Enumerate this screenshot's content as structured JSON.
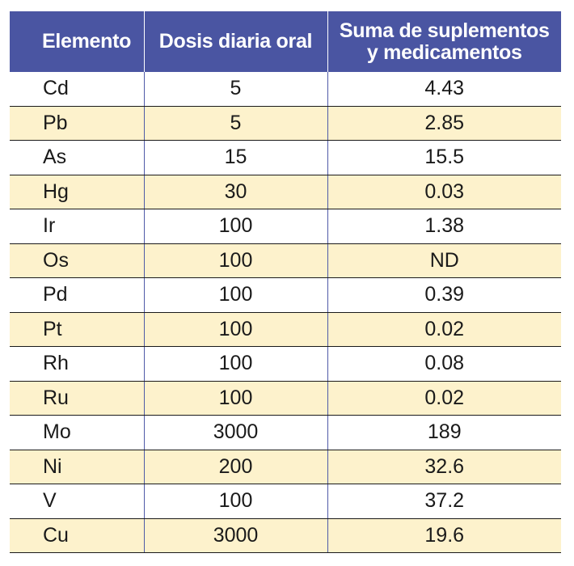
{
  "table": {
    "headers": {
      "element": "Elemento",
      "oral_dose": "Dosis diaria oral",
      "sum_line1": "Suma de suplementos",
      "sum_line2": "y medicamentos"
    },
    "rows": [
      {
        "element": "Cd",
        "dose": "5",
        "sum": "4.43"
      },
      {
        "element": "Pb",
        "dose": "5",
        "sum": "2.85"
      },
      {
        "element": "As",
        "dose": "15",
        "sum": "15.5"
      },
      {
        "element": "Hg",
        "dose": "30",
        "sum": "0.03"
      },
      {
        "element": "Ir",
        "dose": "100",
        "sum": "1.38"
      },
      {
        "element": "Os",
        "dose": "100",
        "sum": "ND"
      },
      {
        "element": "Pd",
        "dose": "100",
        "sum": "0.39"
      },
      {
        "element": "Pt",
        "dose": "100",
        "sum": "0.02"
      },
      {
        "element": "Rh",
        "dose": "100",
        "sum": "0.08"
      },
      {
        "element": "Ru",
        "dose": "100",
        "sum": "0.02"
      },
      {
        "element": "Mo",
        "dose": "3000",
        "sum": "189"
      },
      {
        "element": "Ni",
        "dose": "200",
        "sum": "32.6"
      },
      {
        "element": "V",
        "dose": "100",
        "sum": "37.2"
      },
      {
        "element": "Cu",
        "dose": "3000",
        "sum": "19.6"
      }
    ]
  },
  "colors": {
    "header_bg": "#4a55a2",
    "row_alt_bg": "#fdf2cc",
    "row_bg": "#ffffff"
  }
}
